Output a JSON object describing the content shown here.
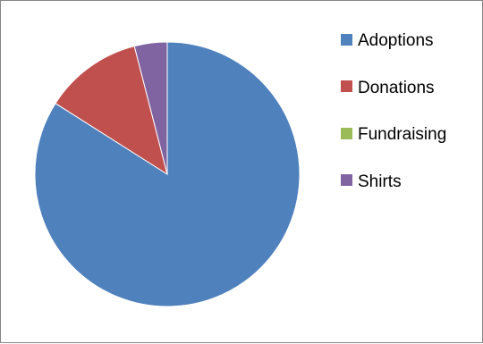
{
  "chart_data": {
    "type": "pie",
    "title": "",
    "categories": [
      "Adoptions",
      "Donations",
      "Fundraising",
      "Shirts"
    ],
    "values": [
      84,
      12,
      0,
      4
    ],
    "colors": [
      "#4F81BD",
      "#C0504D",
      "#9BBB59",
      "#8064A2"
    ],
    "legend_position": "right",
    "start_angle_deg": 0,
    "direction": "clockwise"
  }
}
